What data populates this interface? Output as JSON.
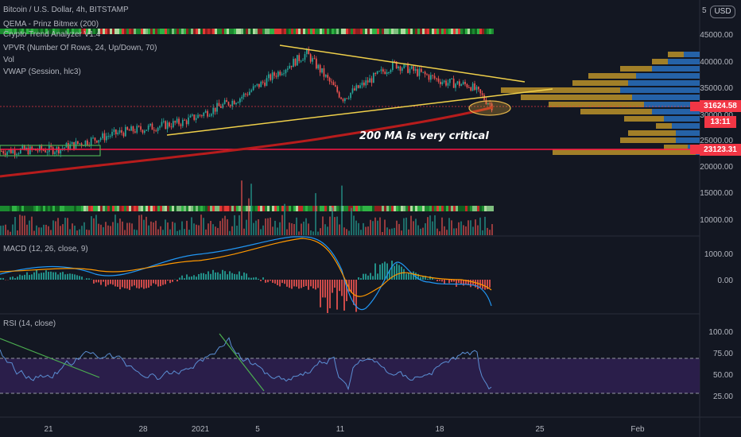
{
  "header": {
    "title": "Bitcoin / U.S. Dollar, 4h, BITSTAMP",
    "indicators": [
      "QEMA - Prinz Bitmex (200)",
      "Crypto Trend Analyzer V1.4",
      "VPVR (Number Of Rows, 24, Up/Down, 70)",
      "Vol",
      "VWAP (Session, hlc3)"
    ],
    "macd_label": "MACD (12, 26, close, 9)",
    "rsi_label": "RSI (14, close)"
  },
  "currency_button": "USD",
  "price_axis": {
    "ticks": [
      "45000.00",
      "40000.00",
      "35000.00",
      "30000.00",
      "25000.00",
      "20000.00",
      "15000.00",
      "10000.00"
    ],
    "last_price": "31624.58",
    "countdown": "13:11",
    "support_price": "23123.31",
    "right_edge_top": "5"
  },
  "macd_axis": {
    "ticks": [
      "1000.00",
      "0.00"
    ]
  },
  "rsi_axis": {
    "ticks": [
      "100.00",
      "75.00",
      "50.00",
      "25.00"
    ]
  },
  "time_axis": {
    "ticks": [
      "21",
      "28",
      "2021",
      "5",
      "11",
      "18",
      "25",
      "Feb"
    ]
  },
  "annotation": "200 MA is very critical",
  "colors": {
    "background": "#131722",
    "up": "#26a69a",
    "down": "#ef5350",
    "ma": "#b71c1c",
    "trendline": "#f0d04a",
    "rsi_band": "#2a1e4a",
    "support": "#ff1744",
    "last_price_tag": "#f23645",
    "vpvr_up": "#2b76c9",
    "vpvr_down": "#c59a2a"
  },
  "chart_data": {
    "type": "candlestick",
    "symbol": "BTCUSD",
    "timeframe": "4h",
    "exchange": "BITSTAMP",
    "approx_close_path": [
      {
        "date": "Dec 18",
        "price": 23000
      },
      {
        "date": "Dec 22",
        "price": 23300
      },
      {
        "date": "Dec 26",
        "price": 26500
      },
      {
        "date": "Dec 30",
        "price": 28500
      },
      {
        "date": "Jan 3",
        "price": 33000
      },
      {
        "date": "Jan 8",
        "price": 41500
      },
      {
        "date": "Jan 11",
        "price": 33000
      },
      {
        "date": "Jan 14",
        "price": 39500
      },
      {
        "date": "Jan 18",
        "price": 36000
      },
      {
        "date": "Jan 20",
        "price": 35500
      },
      {
        "date": "Jan 21",
        "price": 31600
      }
    ],
    "last_price": 31624.58,
    "support_level": 23123.31,
    "ylim": [
      0,
      50000
    ],
    "macd_ylim": [
      -1000,
      1500
    ],
    "rsi_ylim": [
      20,
      110
    ],
    "rsi_bands": [
      30,
      70
    ]
  }
}
